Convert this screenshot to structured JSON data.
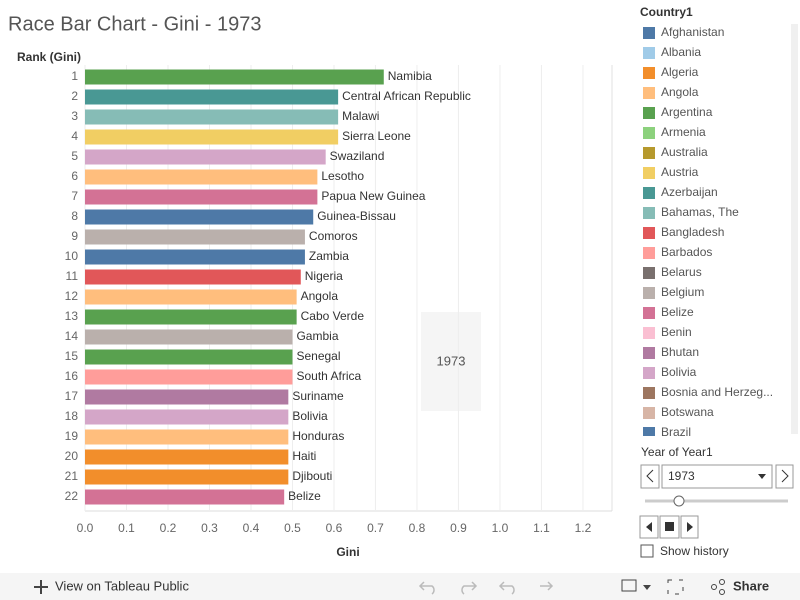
{
  "chart_data": {
    "type": "hbar",
    "title": "Race Bar Chart - Gini - 1973",
    "ylabel": "Rank (Gini)",
    "xlabel": "Gini",
    "categories": [
      "1",
      "2",
      "3",
      "4",
      "5",
      "6",
      "7",
      "8",
      "9",
      "10",
      "11",
      "12",
      "13",
      "14",
      "15",
      "16",
      "17",
      "18",
      "19",
      "20",
      "21",
      "22"
    ],
    "labels": [
      "Namibia",
      "Central African Republic",
      "Malawi",
      "Sierra Leone",
      "Swaziland",
      "Lesotho",
      "Papua New Guinea",
      "Guinea-Bissau",
      "Comoros",
      "Zambia",
      "Nigeria",
      "Angola",
      "Cabo Verde",
      "Gambia",
      "Senegal",
      "South Africa",
      "Suriname",
      "Bolivia",
      "Honduras",
      "Haiti",
      "Djibouti",
      "Belize"
    ],
    "values": [
      0.72,
      0.61,
      0.61,
      0.61,
      0.58,
      0.56,
      0.56,
      0.55,
      0.53,
      0.53,
      0.52,
      0.51,
      0.51,
      0.5,
      0.5,
      0.5,
      0.49,
      0.49,
      0.49,
      0.49,
      0.49,
      0.48
    ],
    "colors": [
      "#59a14f",
      "#499894",
      "#86bcb6",
      "#f1ce63",
      "#d4a6c8",
      "#ffbe7d",
      "#d37295",
      "#4e79a7",
      "#bab0ac",
      "#4e79a7",
      "#e15759",
      "#ffbe7d",
      "#59a14f",
      "#bab0ac",
      "#59a14f",
      "#ff9d9a",
      "#b07aa1",
      "#d4a6c8",
      "#ffbe7d",
      "#f28e2b",
      "#f28e2b",
      "#d37295"
    ],
    "xlim": [
      0,
      1.27
    ],
    "xticks": [
      {
        "value": 0,
        "label": "0.0"
      },
      0.1,
      0.2,
      0.3,
      0.4,
      0.5,
      0.6,
      0.7,
      0.8,
      0.9,
      {
        "value": 1,
        "label": "1.0"
      },
      1.1,
      1.2
    ],
    "grid": true,
    "annotation": "1973",
    "legend": {
      "title": "Country1",
      "items": [
        {
          "name": "Afghanistan",
          "color": "#4e79a7"
        },
        {
          "name": "Albania",
          "color": "#a0cbe8"
        },
        {
          "name": "Algeria",
          "color": "#f28e2b"
        },
        {
          "name": "Angola",
          "color": "#ffbe7d"
        },
        {
          "name": "Argentina",
          "color": "#59a14f"
        },
        {
          "name": "Armenia",
          "color": "#8cd17d"
        },
        {
          "name": "Australia",
          "color": "#b6992d"
        },
        {
          "name": "Austria",
          "color": "#f1ce63"
        },
        {
          "name": "Azerbaijan",
          "color": "#499894"
        },
        {
          "name": "Bahamas, The",
          "color": "#86bcb6"
        },
        {
          "name": "Bangladesh",
          "color": "#e15759"
        },
        {
          "name": "Barbados",
          "color": "#ff9d9a"
        },
        {
          "name": "Belarus",
          "color": "#79706e"
        },
        {
          "name": "Belgium",
          "color": "#bab0ac"
        },
        {
          "name": "Belize",
          "color": "#d37295"
        },
        {
          "name": "Benin",
          "color": "#fabfd2"
        },
        {
          "name": "Bhutan",
          "color": "#b07aa1"
        },
        {
          "name": "Bolivia",
          "color": "#d4a6c8"
        },
        {
          "name": "Bosnia and Herzeg...",
          "color": "#9d7660"
        },
        {
          "name": "Botswana",
          "color": "#d7b5a6"
        },
        {
          "name": "Brazil",
          "color": "#4e79a7"
        }
      ]
    }
  },
  "controls": {
    "year_label": "Year of Year1",
    "year_value": "1973",
    "show_history": "Show history"
  },
  "footer": {
    "view": "View on Tableau Public",
    "share": "Share"
  }
}
